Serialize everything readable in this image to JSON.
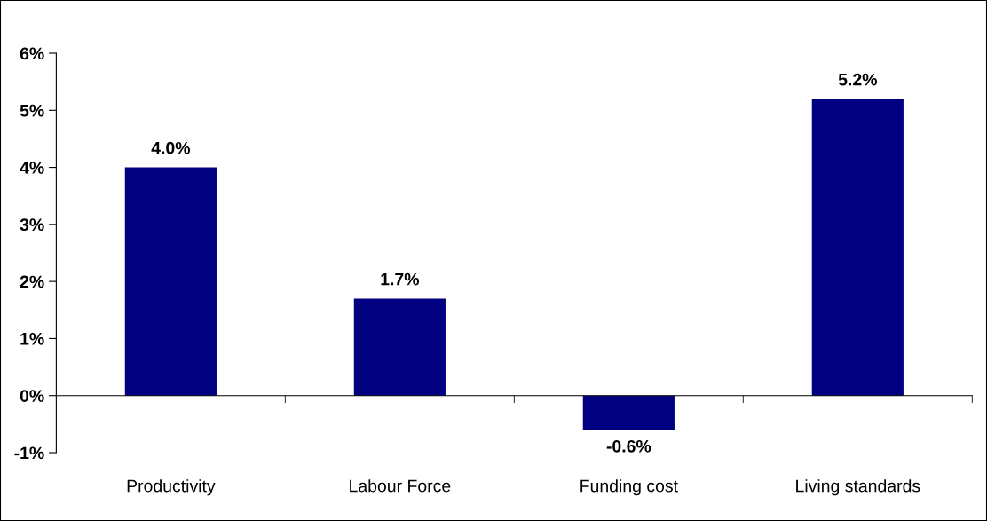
{
  "chart_data": {
    "type": "bar",
    "categories": [
      "Productivity",
      "Labour Force",
      "Funding cost",
      "Living standards"
    ],
    "values": [
      4.0,
      1.7,
      -0.6,
      5.2
    ],
    "value_labels": [
      "4.0%",
      "1.7%",
      "-0.6%",
      "5.2%"
    ],
    "color": "#000080",
    "ylim": [
      -1,
      6
    ],
    "yticks": [
      {
        "value": -1,
        "label": "-1%"
      },
      {
        "value": 0,
        "label": "0%"
      },
      {
        "value": 1,
        "label": "1%"
      },
      {
        "value": 2,
        "label": "2%"
      },
      {
        "value": 3,
        "label": "3%"
      },
      {
        "value": 4,
        "label": "4%"
      },
      {
        "value": 5,
        "label": "5%"
      },
      {
        "value": 6,
        "label": "6%"
      }
    ]
  }
}
